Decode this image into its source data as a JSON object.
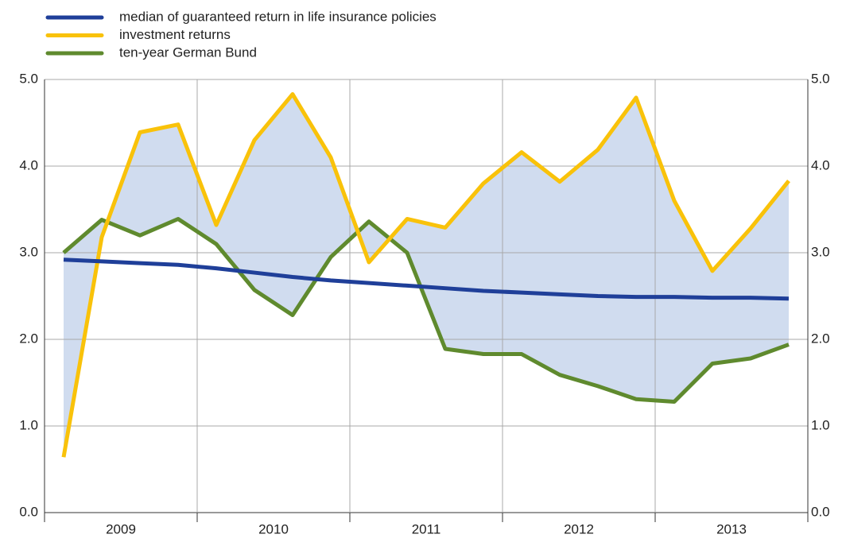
{
  "chart_data": {
    "type": "line",
    "categories": [
      null,
      null,
      null,
      null,
      null,
      null,
      null,
      null,
      null,
      null,
      null,
      null,
      null,
      null,
      null,
      null,
      null,
      null,
      null,
      null
    ],
    "year_labels": [
      "2009",
      "2010",
      "2011",
      "2012",
      "2013"
    ],
    "series": [
      {
        "name": "median of guaranteed return in life insurance policies",
        "color": "#1f3f99",
        "values": [
          2.92,
          2.9,
          2.88,
          2.86,
          2.82,
          2.77,
          2.72,
          2.68,
          2.65,
          2.62,
          2.59,
          2.56,
          2.54,
          2.52,
          2.5,
          2.49,
          2.49,
          2.48,
          2.48,
          2.47
        ]
      },
      {
        "name": "investment returns",
        "color": "#f9c20a",
        "values": [
          0.64,
          3.18,
          4.39,
          4.48,
          3.32,
          4.3,
          4.83,
          4.1,
          2.89,
          3.39,
          3.29,
          3.8,
          4.16,
          3.82,
          4.19,
          4.79,
          3.6,
          2.79,
          3.28,
          3.83
        ]
      },
      {
        "name": "ten-year German Bund",
        "color": "#5f8a2e",
        "values": [
          3.0,
          3.38,
          3.2,
          3.39,
          3.1,
          2.57,
          2.28,
          2.95,
          3.36,
          3.0,
          1.89,
          1.83,
          1.83,
          1.59,
          1.46,
          1.31,
          1.28,
          1.72,
          1.78,
          1.94
        ]
      }
    ],
    "band_color": "#d0dcef",
    "ylim": [
      0,
      5
    ],
    "yticks": [
      {
        "value": 0,
        "label": "0.0"
      },
      {
        "value": 1,
        "label": "1.0"
      },
      {
        "value": 2,
        "label": "2.0"
      },
      {
        "value": 3,
        "label": "3.0"
      },
      {
        "value": 4,
        "label": "4.0"
      },
      {
        "value": 5,
        "label": "5.0"
      }
    ],
    "grid": true
  }
}
